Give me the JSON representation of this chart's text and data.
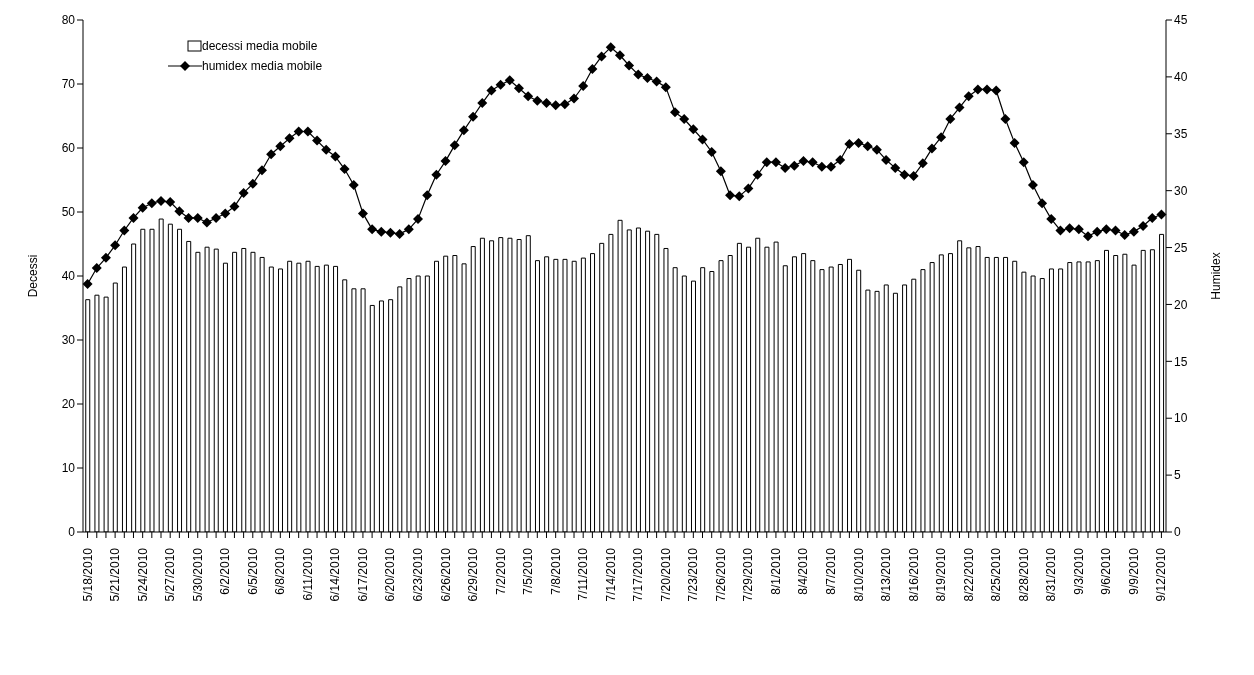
{
  "chart_data": {
    "type": "bar",
    "categories": [
      "5/18/2010",
      null,
      null,
      "5/21/2010",
      null,
      null,
      "5/24/2010",
      null,
      null,
      "5/27/2010",
      null,
      null,
      "5/30/2010",
      null,
      null,
      "6/2/2010",
      null,
      null,
      "6/5/2010",
      null,
      null,
      "6/8/2010",
      null,
      null,
      "6/11/2010",
      null,
      null,
      "6/14/2010",
      null,
      null,
      "6/17/2010",
      null,
      null,
      "6/20/2010",
      null,
      null,
      "6/23/2010",
      null,
      null,
      "6/26/2010",
      null,
      null,
      "6/29/2010",
      null,
      null,
      "7/2/2010",
      null,
      null,
      "7/5/2010",
      null,
      null,
      "7/8/2010",
      null,
      null,
      "7/11/2010",
      null,
      null,
      "7/14/2010",
      null,
      null,
      "7/17/2010",
      null,
      null,
      "7/20/2010",
      null,
      null,
      "7/23/2010",
      null,
      null,
      "7/26/2010",
      null,
      null,
      "7/29/2010",
      null,
      null,
      "8/1/2010",
      null,
      null,
      "8/4/2010",
      null,
      null,
      "8/7/2010",
      null,
      null,
      "8/10/2010",
      null,
      null,
      "8/13/2010",
      null,
      null,
      "8/16/2010",
      null,
      null,
      "8/19/2010",
      null,
      null,
      "8/22/2010",
      null,
      null,
      "8/25/2010",
      null,
      null,
      "8/28/2010",
      null,
      null,
      "8/31/2010",
      null,
      null,
      "9/3/2010",
      null,
      null,
      "9/6/2010",
      null,
      null,
      "9/9/2010",
      null,
      null,
      "9/12/2010"
    ],
    "series": [
      {
        "name": "decessi media mobile",
        "color": "#ffffff",
        "values": [
          36.3,
          37.0,
          36.7,
          38.9,
          41.4,
          45.0,
          47.3,
          47.3,
          48.9,
          48.1,
          47.3,
          45.4,
          43.7,
          44.5,
          44.2,
          42.0,
          43.7,
          44.3,
          43.7,
          42.9,
          41.4,
          41.1,
          42.3,
          42.0,
          42.3,
          41.5,
          41.7,
          41.5,
          39.4,
          38.0,
          38.0,
          35.4,
          36.1,
          36.3,
          38.3,
          39.6,
          40.0,
          40.0,
          42.3,
          43.1,
          43.2,
          41.9,
          44.6,
          45.9,
          45.5,
          46.0,
          45.9,
          45.7,
          46.3,
          42.4,
          43.0,
          42.6,
          42.6,
          42.3,
          42.8,
          43.5,
          45.1,
          46.5,
          48.7,
          47.2,
          47.5,
          47.0,
          46.5,
          44.3,
          41.3,
          40.0,
          39.2,
          41.3,
          40.7,
          42.4,
          43.2,
          45.1,
          44.5,
          45.9,
          44.5,
          45.3,
          41.6,
          43.0,
          43.5,
          42.4,
          41.0,
          41.4,
          41.8,
          42.6,
          40.9,
          37.8,
          37.6,
          38.6,
          37.3,
          38.6,
          39.5,
          41.0,
          42.1,
          43.3,
          43.5,
          45.5,
          44.4,
          44.6,
          42.9,
          42.9,
          42.9,
          42.3,
          40.6,
          40.0,
          39.6,
          41.1,
          41.1,
          42.1,
          42.2,
          42.2,
          42.4,
          44.0,
          43.2,
          43.4,
          41.7,
          44.0,
          44.1,
          46.5
        ]
      },
      {
        "name": "humidex media mobile",
        "type": "line",
        "axis": "y2",
        "color": "#000000",
        "values": [
          21.8,
          23.2,
          24.1,
          25.2,
          26.5,
          27.6,
          28.5,
          28.9,
          29.1,
          29.0,
          28.2,
          27.6,
          27.6,
          27.2,
          27.6,
          28.0,
          28.6,
          29.8,
          30.6,
          31.8,
          33.2,
          33.9,
          34.6,
          35.2,
          35.2,
          34.4,
          33.6,
          33.0,
          31.9,
          30.5,
          28.0,
          26.6,
          26.4,
          26.3,
          26.2,
          26.6,
          27.5,
          29.6,
          31.4,
          32.6,
          34.0,
          35.3,
          36.5,
          37.7,
          38.8,
          39.3,
          39.7,
          39.0,
          38.3,
          37.9,
          37.7,
          37.5,
          37.6,
          38.1,
          39.2,
          40.7,
          41.8,
          42.6,
          41.9,
          41.0,
          40.2,
          39.9,
          39.6,
          39.1,
          36.9,
          36.3,
          35.4,
          34.5,
          33.4,
          31.7,
          29.6,
          29.5,
          30.2,
          31.4,
          32.5,
          32.5,
          32.0,
          32.2,
          32.6,
          32.5,
          32.1,
          32.1,
          32.7,
          34.1,
          34.2,
          33.9,
          33.6,
          32.7,
          32.0,
          31.4,
          31.3,
          32.4,
          33.7,
          34.7,
          36.3,
          37.3,
          38.3,
          38.9,
          38.9,
          38.8,
          36.3,
          34.2,
          32.5,
          30.5,
          28.9,
          27.5,
          26.5,
          26.7,
          26.6,
          26.0,
          26.4,
          26.6,
          26.5,
          26.1,
          26.4,
          26.9,
          27.6,
          27.9
        ]
      }
    ],
    "ylabel": "Decessi",
    "y2label": "Humidex",
    "ylim": [
      0,
      80
    ],
    "yticks": [
      0,
      10,
      20,
      30,
      40,
      50,
      60,
      70,
      80
    ],
    "y2lim": [
      0,
      45
    ],
    "y2ticks": [
      0,
      5,
      10,
      15,
      20,
      25,
      30,
      35,
      40,
      45
    ],
    "marker": "diamond",
    "line_style": "solid",
    "grid": false,
    "legend": "top left"
  }
}
